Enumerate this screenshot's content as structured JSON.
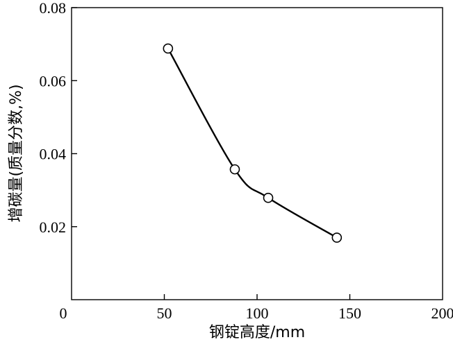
{
  "chart_data": {
    "type": "line",
    "title": "",
    "xlabel": "钢锭高度/mm",
    "ylabel": "增碳量(质量分数,%)",
    "xlim": [
      0,
      200
    ],
    "ylim": [
      0,
      0.08
    ],
    "xticks": [
      0,
      50,
      100,
      150,
      200
    ],
    "yticks": [
      0.02,
      0.04,
      0.06,
      0.08
    ],
    "xtick_labels": [
      "0",
      "50",
      "100",
      "150",
      "200"
    ],
    "ytick_labels": [
      "0.02",
      "0.04",
      "0.06",
      "0.08"
    ],
    "grid": false,
    "series": [
      {
        "x": [
          52,
          88,
          106,
          143
        ],
        "y": [
          0.0688,
          0.0357,
          0.0279,
          0.017
        ],
        "marker": "open-circle",
        "color": "#000000"
      }
    ]
  }
}
